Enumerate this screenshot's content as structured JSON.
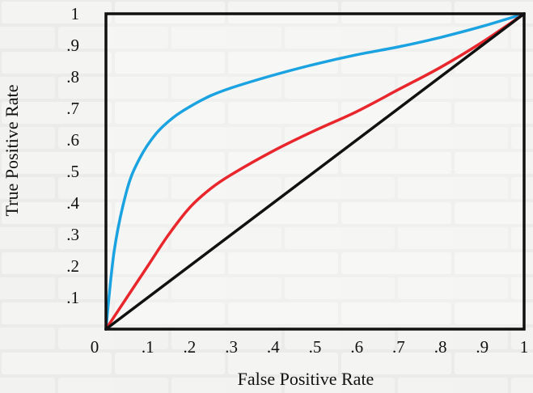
{
  "chart_data": {
    "type": "line",
    "title": "",
    "xlabel": "False Positive Rate",
    "ylabel": "True Positive Rate",
    "xlim": [
      0,
      1
    ],
    "ylim": [
      0,
      1
    ],
    "x_ticks": [
      "0",
      ".1",
      ".2",
      ".3",
      ".4",
      ".5",
      ".6",
      ".7",
      ".8",
      ".9",
      "1"
    ],
    "y_ticks": [
      ".1",
      ".2",
      ".3",
      ".4",
      ".5",
      ".6",
      ".7",
      ".8",
      ".9",
      "1"
    ],
    "grid": false,
    "legend": "none",
    "series": [
      {
        "color": "#1aa3e0",
        "x": [
          0,
          0.02,
          0.05,
          0.08,
          0.12,
          0.16,
          0.2,
          0.25,
          0.3,
          0.4,
          0.5,
          0.6,
          0.7,
          0.8,
          0.9,
          1.0
        ],
        "y": [
          0,
          0.25,
          0.44,
          0.54,
          0.62,
          0.67,
          0.705,
          0.74,
          0.765,
          0.805,
          0.84,
          0.87,
          0.895,
          0.925,
          0.96,
          1.0
        ]
      },
      {
        "color": "#e8262b",
        "x": [
          0,
          0.05,
          0.1,
          0.15,
          0.2,
          0.25,
          0.3,
          0.4,
          0.5,
          0.6,
          0.7,
          0.8,
          0.9,
          1.0
        ],
        "y": [
          0,
          0.1,
          0.2,
          0.3,
          0.385,
          0.445,
          0.49,
          0.565,
          0.63,
          0.69,
          0.76,
          0.83,
          0.91,
          1.0
        ]
      },
      {
        "color": "#111111",
        "x": [
          0,
          1
        ],
        "y": [
          0,
          1
        ]
      }
    ]
  }
}
